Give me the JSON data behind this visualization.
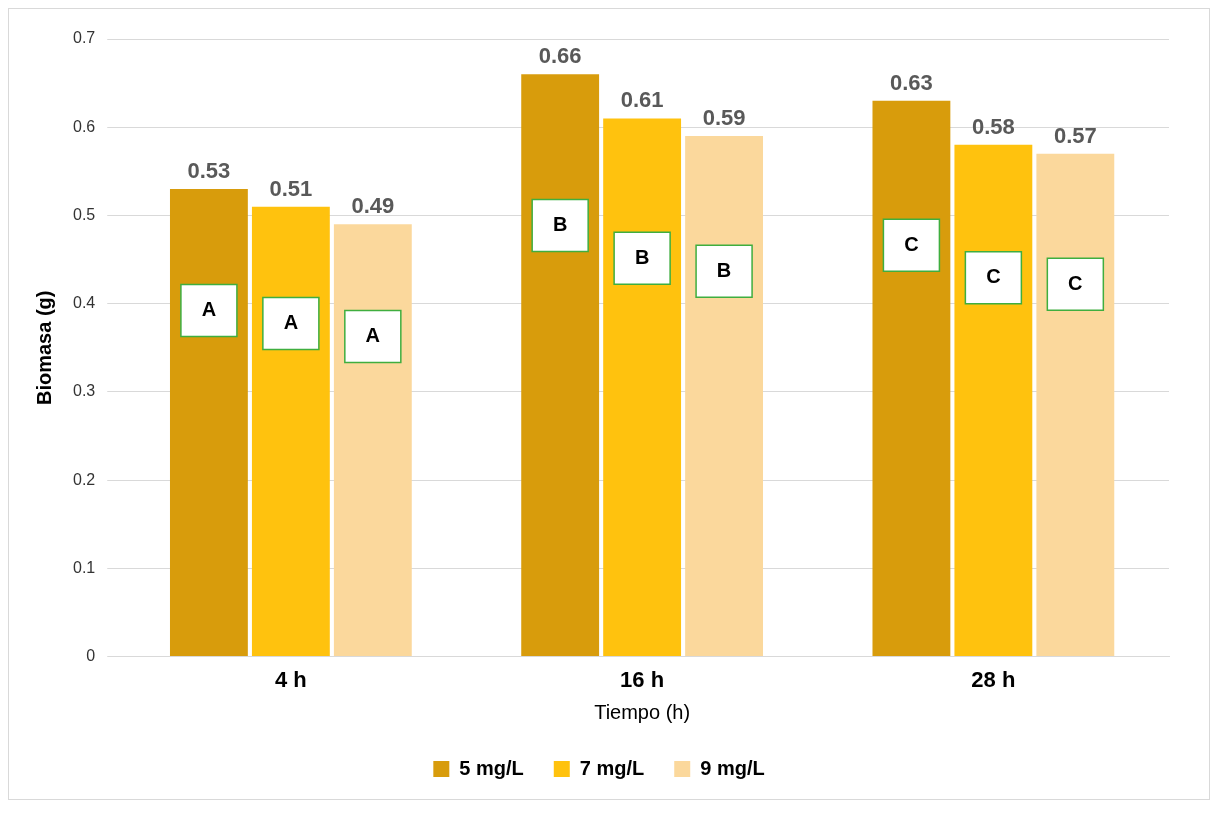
{
  "chart_data": {
    "type": "bar",
    "xlabel": "Tiempo (h)",
    "ylabel": "Biomasa (g)",
    "categories": [
      "4 h",
      "16 h",
      "28 h"
    ],
    "series": [
      {
        "name": "5 mg/L",
        "color": "#d89c0c",
        "values": [
          0.53,
          0.66,
          0.63
        ]
      },
      {
        "name": "7 mg/L",
        "color": "#ffc20e",
        "values": [
          0.51,
          0.61,
          0.58
        ]
      },
      {
        "name": "9 mg/L",
        "color": "#fbd89c",
        "values": [
          0.49,
          0.59,
          0.57
        ]
      }
    ],
    "ylim": [
      0,
      0.7
    ],
    "yticks": [
      0,
      0.1,
      0.2,
      0.3,
      0.4,
      0.5,
      0.6,
      0.7
    ],
    "grid": "y",
    "legend": "bottom",
    "data_labels": true,
    "annotations": [
      "A",
      "A",
      "A",
      "B",
      "B",
      "B",
      "C",
      "C",
      "C"
    ]
  }
}
